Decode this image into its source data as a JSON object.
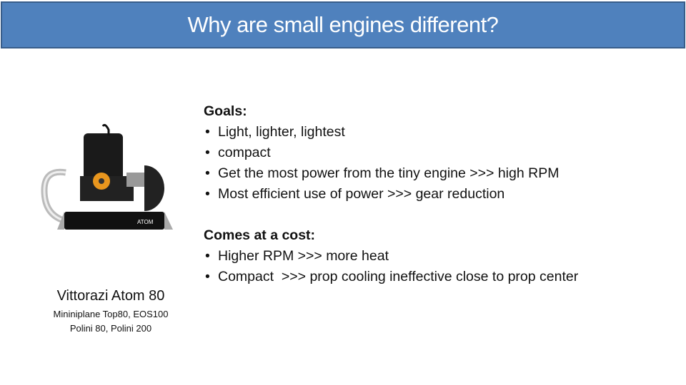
{
  "title": "Why are small engines different?",
  "image": {
    "logo_text": "ATOM"
  },
  "caption": {
    "name": "Vittorazi Atom 80",
    "line2": "Mininiplane Top80, EOS100",
    "line3": "Polini 80, Polini 200"
  },
  "sections": [
    {
      "heading": "Goals:",
      "items": [
        "Light, lighter, lightest",
        "compact",
        "Get the most power from the tiny engine >>> high RPM",
        "Most efficient use of power >>> gear reduction"
      ]
    },
    {
      "heading": "Comes at a cost:",
      "items": [
        "Higher RPM >>> more heat",
        "Compact  >>> prop cooling ineffective close to prop center"
      ]
    }
  ]
}
